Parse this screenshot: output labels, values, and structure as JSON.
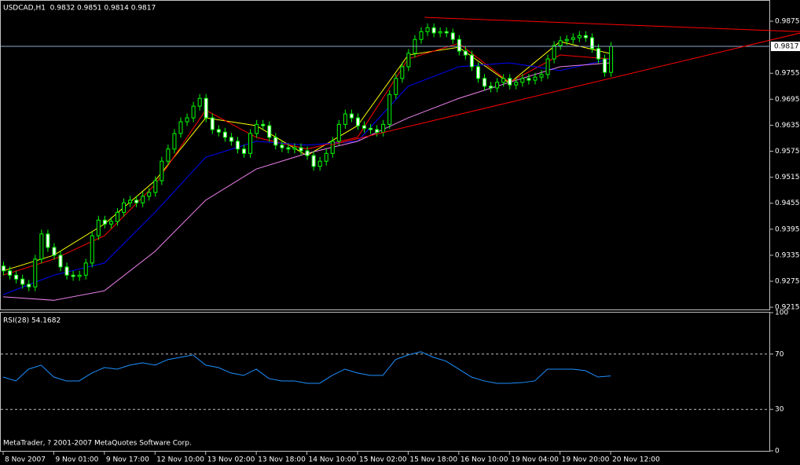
{
  "chart_data": [
    {
      "type": "candlestick",
      "title": "USDCAD,H1  0.9832 0.9851 0.9814 0.9817",
      "categories": [
        "8 Nov 2007",
        null,
        null,
        null,
        null,
        null,
        null,
        null,
        "9 Nov 01:00",
        null,
        null,
        null,
        null,
        null,
        null,
        null,
        "9 Nov 17:00",
        null,
        null,
        null,
        null,
        null,
        null,
        null,
        "12 Nov 10:00",
        null,
        null,
        null,
        null,
        null,
        null,
        null,
        "13 Nov 02:00",
        null,
        null,
        null,
        null,
        null,
        null,
        null,
        "13 Nov 18:00",
        null,
        null,
        null,
        null,
        null,
        null,
        null,
        "14 Nov 10:00",
        null,
        null,
        null,
        null,
        null,
        null,
        null,
        "15 Nov 02:00",
        null,
        null,
        null,
        null,
        null,
        null,
        null,
        "15 Nov 18:00",
        null,
        null,
        null,
        null,
        null,
        null,
        null,
        "16 Nov 10:00",
        null,
        null,
        null,
        null,
        null,
        null,
        null,
        "19 Nov 04:00",
        null,
        null,
        null,
        null,
        null,
        null,
        null,
        "19 Nov 20:00",
        null,
        null,
        null,
        null,
        null,
        null,
        null,
        "20 Nov 12:00"
      ],
      "open": [
        0.931,
        0.9299,
        0.9289,
        0.928,
        0.9268,
        0.9262,
        0.9326,
        0.9384,
        0.9353,
        0.9335,
        0.9308,
        0.9289,
        0.9286,
        0.9289,
        0.9317,
        0.938,
        0.9416,
        0.9407,
        0.9413,
        0.9434,
        0.9456,
        0.9462,
        0.9456,
        0.9471,
        0.948,
        0.9507,
        0.9552,
        0.958,
        0.9616,
        0.9643,
        0.9652,
        0.9679,
        0.9697,
        0.9652,
        0.9625,
        0.9619,
        0.9607,
        0.9598,
        0.958,
        0.957,
        0.9616,
        0.9637,
        0.9634,
        0.9607,
        0.9589,
        0.9583,
        0.958,
        0.9583,
        0.9576,
        0.9565,
        0.954,
        0.9552,
        0.957,
        0.9598,
        0.9637,
        0.9661,
        0.9652,
        0.9634,
        0.9628,
        0.9625,
        0.9619,
        0.9637,
        0.9706,
        0.9743,
        0.977,
        0.9801,
        0.9833,
        0.9851,
        0.986,
        0.9848,
        0.9851,
        0.9848,
        0.9833,
        0.9806,
        0.9797,
        0.977,
        0.9743,
        0.9725,
        0.9721,
        0.9734,
        0.9743,
        0.9728,
        0.9734,
        0.9743,
        0.9739,
        0.9746,
        0.9752,
        0.9788,
        0.9819,
        0.983,
        0.9833,
        0.9837,
        0.9842,
        0.9837,
        0.9812,
        0.9788,
        0.9757
      ],
      "high": [
        0.932,
        0.9309,
        0.9299,
        0.929,
        0.9278,
        0.9336,
        0.9394,
        0.9394,
        0.9363,
        0.9345,
        0.9318,
        0.9299,
        0.9299,
        0.9327,
        0.939,
        0.9426,
        0.9426,
        0.9423,
        0.9444,
        0.9466,
        0.9472,
        0.9472,
        0.9481,
        0.949,
        0.9517,
        0.9562,
        0.959,
        0.9626,
        0.9653,
        0.9662,
        0.9689,
        0.9707,
        0.9707,
        0.9662,
        0.9635,
        0.9629,
        0.9617,
        0.9608,
        0.959,
        0.9626,
        0.9647,
        0.9647,
        0.9644,
        0.9617,
        0.9599,
        0.9593,
        0.9593,
        0.9593,
        0.9586,
        0.9575,
        0.9562,
        0.958,
        0.9608,
        0.9647,
        0.9671,
        0.9671,
        0.9662,
        0.9644,
        0.9638,
        0.9635,
        0.9647,
        0.9716,
        0.9753,
        0.978,
        0.9811,
        0.9843,
        0.9861,
        0.987,
        0.987,
        0.9861,
        0.9861,
        0.9858,
        0.9843,
        0.9816,
        0.9807,
        0.978,
        0.9753,
        0.9735,
        0.9744,
        0.9753,
        0.9753,
        0.9744,
        0.9753,
        0.9753,
        0.9756,
        0.9762,
        0.9798,
        0.9829,
        0.984,
        0.9843,
        0.9847,
        0.9852,
        0.9852,
        0.9847,
        0.9822,
        0.9798,
        0.9827
      ],
      "low": [
        0.9289,
        0.9279,
        0.927,
        0.9258,
        0.9252,
        0.9252,
        0.9316,
        0.9343,
        0.9325,
        0.9298,
        0.9279,
        0.9276,
        0.9276,
        0.9279,
        0.9307,
        0.937,
        0.9397,
        0.9397,
        0.9403,
        0.9424,
        0.9446,
        0.9446,
        0.9446,
        0.9461,
        0.947,
        0.9497,
        0.9542,
        0.957,
        0.9606,
        0.9633,
        0.9642,
        0.9669,
        0.9642,
        0.9615,
        0.9609,
        0.9597,
        0.9588,
        0.957,
        0.956,
        0.956,
        0.9606,
        0.9624,
        0.9597,
        0.9579,
        0.9573,
        0.957,
        0.957,
        0.9566,
        0.9555,
        0.953,
        0.953,
        0.9542,
        0.956,
        0.9588,
        0.9627,
        0.9642,
        0.9624,
        0.9618,
        0.9615,
        0.9609,
        0.9609,
        0.9627,
        0.9696,
        0.9733,
        0.976,
        0.9791,
        0.9823,
        0.9841,
        0.9838,
        0.9838,
        0.9838,
        0.9823,
        0.9796,
        0.9787,
        0.976,
        0.9733,
        0.9715,
        0.9711,
        0.9711,
        0.9724,
        0.9718,
        0.9718,
        0.9724,
        0.9729,
        0.9729,
        0.9736,
        0.9742,
        0.9778,
        0.9809,
        0.982,
        0.9823,
        0.9827,
        0.9827,
        0.9802,
        0.9778,
        0.9747,
        0.9747
      ],
      "close": [
        0.9299,
        0.9289,
        0.928,
        0.9268,
        0.9262,
        0.9326,
        0.9384,
        0.9353,
        0.9335,
        0.9308,
        0.9289,
        0.9286,
        0.9289,
        0.9317,
        0.938,
        0.9416,
        0.9407,
        0.9413,
        0.9434,
        0.9456,
        0.9462,
        0.9456,
        0.9471,
        0.948,
        0.9507,
        0.9552,
        0.958,
        0.9616,
        0.9643,
        0.9652,
        0.9679,
        0.9697,
        0.9652,
        0.9625,
        0.9619,
        0.9607,
        0.9598,
        0.958,
        0.957,
        0.9616,
        0.9637,
        0.9634,
        0.9607,
        0.9589,
        0.9583,
        0.958,
        0.9583,
        0.9576,
        0.9565,
        0.954,
        0.9552,
        0.957,
        0.9598,
        0.9637,
        0.9661,
        0.9652,
        0.9634,
        0.9628,
        0.9625,
        0.9619,
        0.9637,
        0.9706,
        0.9743,
        0.977,
        0.9801,
        0.9833,
        0.9851,
        0.986,
        0.9848,
        0.9851,
        0.9848,
        0.9833,
        0.9806,
        0.9797,
        0.977,
        0.9743,
        0.9725,
        0.9721,
        0.9734,
        0.9743,
        0.9728,
        0.9734,
        0.9743,
        0.9739,
        0.9746,
        0.9752,
        0.9788,
        0.9819,
        0.983,
        0.9833,
        0.9837,
        0.9842,
        0.9837,
        0.9812,
        0.9788,
        0.9757,
        0.9817
      ],
      "color": "#00ff00",
      "up_fill": "#000000",
      "down_fill": "#ffffff",
      "xlim": [
        -0.5,
        121.2
      ],
      "ylim": [
        0.9208,
        0.9924
      ],
      "yticks": [
        0.9875,
        0.9755,
        0.9695,
        0.9635,
        0.9575,
        0.9515,
        0.9455,
        0.9395,
        0.9335,
        0.9275,
        0.9215
      ],
      "moving_averages": [
        {
          "color": "#ffff00",
          "x": [
            0,
            8,
            16,
            24,
            32,
            40,
            48,
            56,
            64,
            72,
            80,
            88,
            96
          ],
          "values": [
            0.9299,
            0.9335,
            0.9407,
            0.9507,
            0.9652,
            0.9634,
            0.9565,
            0.9634,
            0.9797,
            0.9815,
            0.9732,
            0.9828,
            0.98
          ]
        },
        {
          "color": "#ff0000",
          "x": [
            0,
            8,
            16,
            24,
            32,
            40,
            48,
            56,
            64,
            72,
            80,
            88,
            96
          ],
          "values": [
            0.9289,
            0.9326,
            0.938,
            0.9498,
            0.967,
            0.9607,
            0.958,
            0.9607,
            0.9788,
            0.9824,
            0.9734,
            0.9797,
            0.9788
          ]
        },
        {
          "color": "#0000ff",
          "x": [
            0,
            8,
            16,
            24,
            32,
            40,
            48,
            56,
            64,
            72,
            80,
            88,
            96
          ],
          "values": [
            0.9244,
            0.9289,
            0.9317,
            0.9434,
            0.9561,
            0.9598,
            0.9589,
            0.9598,
            0.9725,
            0.977,
            0.9779,
            0.9761,
            0.9788
          ]
        },
        {
          "color": "#ee82ee",
          "x": [
            0,
            8,
            16,
            24,
            32,
            40,
            48,
            56,
            64,
            72,
            80,
            88,
            96
          ],
          "values": [
            0.9239,
            0.9231,
            0.9253,
            0.9344,
            0.9462,
            0.9534,
            0.957,
            0.9598,
            0.9652,
            0.9697,
            0.9734,
            0.977,
            0.9779
          ]
        }
      ],
      "trend_lines": [
        {
          "color": "#ff0000",
          "x": [
            66.6,
            126
          ],
          "values": [
            0.9884,
            0.9851
          ]
        },
        {
          "color": "#ff0000",
          "x": [
            51.7,
            126
          ],
          "values": [
            0.9589,
            0.9848
          ]
        }
      ],
      "last_price": 0.9817,
      "last_price_color": "#8fa8c8"
    },
    {
      "type": "line",
      "title": "RSI(28) 54.1682",
      "color": "#1e90ff",
      "x": [
        0,
        2,
        4,
        6,
        8,
        10,
        12,
        14,
        16,
        18,
        20,
        22,
        24,
        26,
        28,
        30,
        32,
        34,
        36,
        38,
        40,
        42,
        44,
        46,
        48,
        50,
        52,
        54,
        56,
        58,
        60,
        62,
        64,
        66,
        68,
        70,
        72,
        74,
        76,
        78,
        80,
        82,
        84,
        86,
        88,
        90,
        92,
        94,
        96
      ],
      "values": [
        53.4,
        50.6,
        59.1,
        62.0,
        53.4,
        50.6,
        50.6,
        56.3,
        60.3,
        59.1,
        62.0,
        63.7,
        62.0,
        66.0,
        67.7,
        69.4,
        62.0,
        60.3,
        56.3,
        54.6,
        59.1,
        52.3,
        50.6,
        50.6,
        48.9,
        48.9,
        54.6,
        59.1,
        56.3,
        54.6,
        54.6,
        66.0,
        69.4,
        71.7,
        67.7,
        64.9,
        59.1,
        53.4,
        50.6,
        48.9,
        48.9,
        49.4,
        50.6,
        59.1,
        59.1,
        59.1,
        58.0,
        53.4,
        54.1682
      ],
      "xlim": [
        -0.5,
        121.2
      ],
      "ylim": [
        0,
        100
      ],
      "yticks": [
        100,
        70,
        30,
        0
      ],
      "levels": [
        70,
        30
      ]
    }
  ],
  "footer": "MetaTrader, ? 2001-2007 MetaQuotes Software Corp."
}
